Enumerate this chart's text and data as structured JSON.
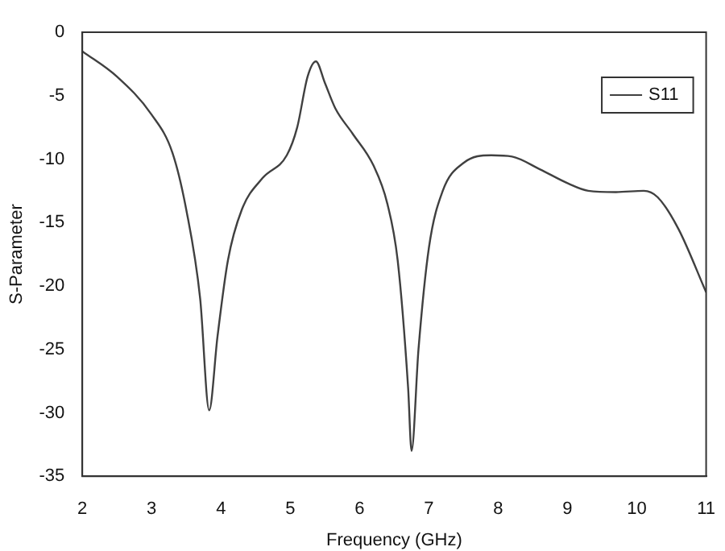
{
  "chart_data": {
    "type": "line",
    "xlabel": "Frequency (GHz)",
    "ylabel": "S-Parameter",
    "xlim": [
      2,
      11
    ],
    "ylim": [
      -35,
      0
    ],
    "xticks": [
      2,
      3,
      4,
      5,
      6,
      7,
      8,
      9,
      10,
      11
    ],
    "yticks": [
      -35,
      -30,
      -25,
      -20,
      -15,
      -10,
      -5,
      0
    ],
    "grid": false,
    "legend": "top right",
    "marker": "none",
    "line_style": "solid",
    "series": [
      {
        "name": "S11",
        "color": "#404040",
        "x": [
          2,
          2.5,
          3,
          3.3,
          3.5,
          3.7,
          3.83,
          3.95,
          4.1,
          4.3,
          4.6,
          4.95,
          5.1,
          5.25,
          5.37,
          5.5,
          5.65,
          5.9,
          6.2,
          6.4,
          6.55,
          6.7,
          6.75,
          6.85,
          7.0,
          7.2,
          7.5,
          7.9,
          8.2,
          8.6,
          9.0,
          9.3,
          9.7,
          10.1,
          10.3,
          10.6,
          11
        ],
        "values": [
          -1.5,
          -3.5,
          -6.5,
          -9.5,
          -14,
          -21,
          -29.8,
          -24,
          -18,
          -14,
          -11.5,
          -9.7,
          -7.5,
          -3.5,
          -2.3,
          -4,
          -6,
          -8,
          -10.5,
          -13.5,
          -18,
          -28,
          -33,
          -25,
          -17,
          -12.5,
          -10.3,
          -9.7,
          -9.8,
          -10.8,
          -11.9,
          -12.5,
          -12.6,
          -12.5,
          -13,
          -15.5,
          -20.5
        ]
      }
    ]
  }
}
